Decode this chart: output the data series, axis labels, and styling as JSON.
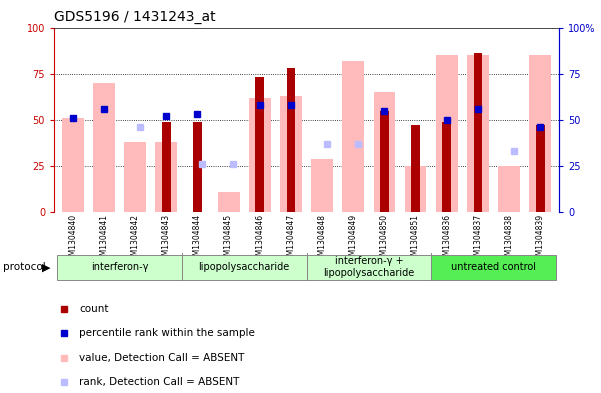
{
  "title": "GDS5196 / 1431243_at",
  "samples": [
    "GSM1304840",
    "GSM1304841",
    "GSM1304842",
    "GSM1304843",
    "GSM1304844",
    "GSM1304845",
    "GSM1304846",
    "GSM1304847",
    "GSM1304848",
    "GSM1304849",
    "GSM1304850",
    "GSM1304851",
    "GSM1304836",
    "GSM1304837",
    "GSM1304838",
    "GSM1304839"
  ],
  "count_values": [
    0,
    0,
    0,
    49,
    49,
    0,
    73,
    78,
    0,
    0,
    55,
    47,
    49,
    86,
    0,
    47
  ],
  "rank_values": [
    51,
    56,
    null,
    52,
    53,
    null,
    58,
    58,
    null,
    null,
    55,
    null,
    50,
    56,
    null,
    46
  ],
  "absent_value_values": [
    51,
    70,
    38,
    38,
    null,
    11,
    62,
    63,
    29,
    82,
    65,
    25,
    85,
    85,
    25,
    85
  ],
  "absent_rank_values": [
    null,
    null,
    46,
    null,
    26,
    26,
    null,
    null,
    37,
    37,
    null,
    null,
    null,
    null,
    33,
    null
  ],
  "groups": [
    {
      "label": "interferon-γ",
      "start": 0,
      "end": 4,
      "color": "#ccffcc"
    },
    {
      "label": "lipopolysaccharide",
      "start": 4,
      "end": 8,
      "color": "#ccffcc"
    },
    {
      "label": "interferon-γ +\nlipopolysaccharide",
      "start": 8,
      "end": 12,
      "color": "#ccffcc"
    },
    {
      "label": "untreated control",
      "start": 12,
      "end": 16,
      "color": "#55ee55"
    }
  ],
  "ylim": [
    0,
    100
  ],
  "grid_vals": [
    25,
    50,
    75
  ],
  "left_axis_color": "#cc0000",
  "right_axis_color": "#0000cc",
  "count_color": "#aa0000",
  "rank_color": "#0000cc",
  "absent_value_color": "#ffbbbb",
  "absent_rank_color": "#bbbbff",
  "bg_color": "#ffffff",
  "legend_items": [
    {
      "label": "count",
      "color": "#aa0000"
    },
    {
      "label": "percentile rank within the sample",
      "color": "#0000cc"
    },
    {
      "label": "value, Detection Call = ABSENT",
      "color": "#ffbbbb"
    },
    {
      "label": "rank, Detection Call = ABSENT",
      "color": "#bbbbff"
    }
  ]
}
